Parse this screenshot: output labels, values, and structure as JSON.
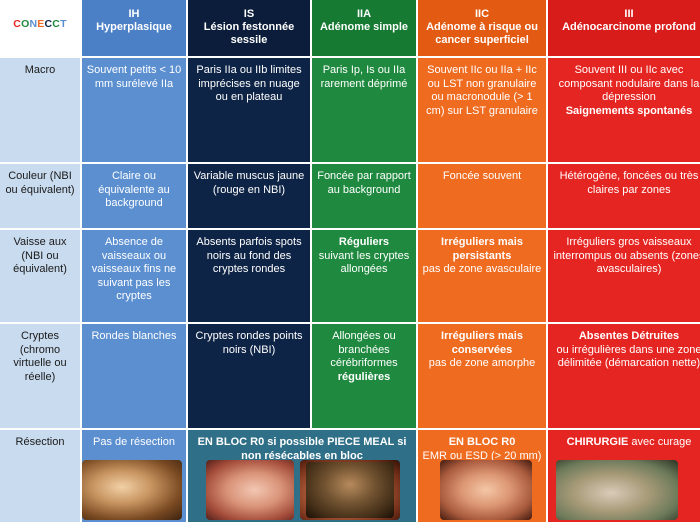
{
  "logo": "CONECCT",
  "headers": [
    {
      "code": "IH",
      "name": "Hyperplasique"
    },
    {
      "code": "IS",
      "name": "Lésion festonnée sessile"
    },
    {
      "code": "IIA",
      "name": "Adénome simple"
    },
    {
      "code": "IIC",
      "name": "Adénome à risque ou cancer superficiel"
    },
    {
      "code": "III",
      "name": "Adénocarcinome profond"
    }
  ],
  "rows": {
    "macro": {
      "label": "Macro",
      "ih": "Souvent petits < 10 mm surélevé IIa",
      "is": "Paris IIa ou IIb limites imprécises en nuage ou en plateau",
      "iia": "Paris Ip, Is ou IIa rarement déprimé",
      "iic": "Souvent IIc ou IIa + IIc ou LST non granulaire ou macronodule (> 1 cm) sur LST granulaire",
      "iii": "Souvent III ou IIc avec composant nodulaire dans la dépression",
      "iii_bold": "Saignements spontanés"
    },
    "couleur": {
      "label": "Couleur (NBI ou équivalent)",
      "ih": "Claire ou équivalente au background",
      "is": "Variable muscus jaune (rouge en NBI)",
      "iia": "Foncée par rapport au background",
      "iic": "Foncée souvent",
      "iii": "Hétérogène, foncées ou très claires par zones"
    },
    "vaisseaux": {
      "label": "Vaisse aux (NBI ou équivalent)",
      "ih": "Absence de vaisseaux ou vaisseaux fins ne suivant pas les cryptes",
      "is": "Absents parfois spots noirs au fond des cryptes rondes",
      "iia_bold": "Réguliers",
      "iia": "suivant les cryptes allongées",
      "iic_bold": "Irréguliers mais persistants",
      "iic": "pas de zone avasculaire",
      "iii": "Irréguliers gros vaisseaux interrompus ou absents (zones avasculaires)"
    },
    "cryptes": {
      "label": "Cryptes (chromo virtuelle ou réelle)",
      "ih": "Rondes blanches",
      "is": "Cryptes rondes points noirs (NBI)",
      "iia": "Allongées ou branchées cérébriformes",
      "iia_bold": "régulières",
      "iic_bold": "Irréguliers mais conservées",
      "iic": "pas de zone amorphe",
      "iii_bold": "Absentes Détruites",
      "iii": "ou irrégulières dans une zone délimitée (démarcation nette)"
    },
    "resection": {
      "label": "Résection",
      "ih": "Pas de résection",
      "is_bold": "EN BLOC R0 si possible PIECE MEAL si non résécables en bloc",
      "iic_bold": "EN BLOC R0",
      "iic": "EMR ou ESD (> 20 mm)",
      "iii_bold": "CHIRURGIE",
      "iii": "avec curage"
    }
  },
  "colors": {
    "ih": "#5b8fd0",
    "is": "#0e2446",
    "iia": "#1f8a3f",
    "iic": "#ee6b1f",
    "iii": "#e52521",
    "label": "#c9dbef"
  }
}
